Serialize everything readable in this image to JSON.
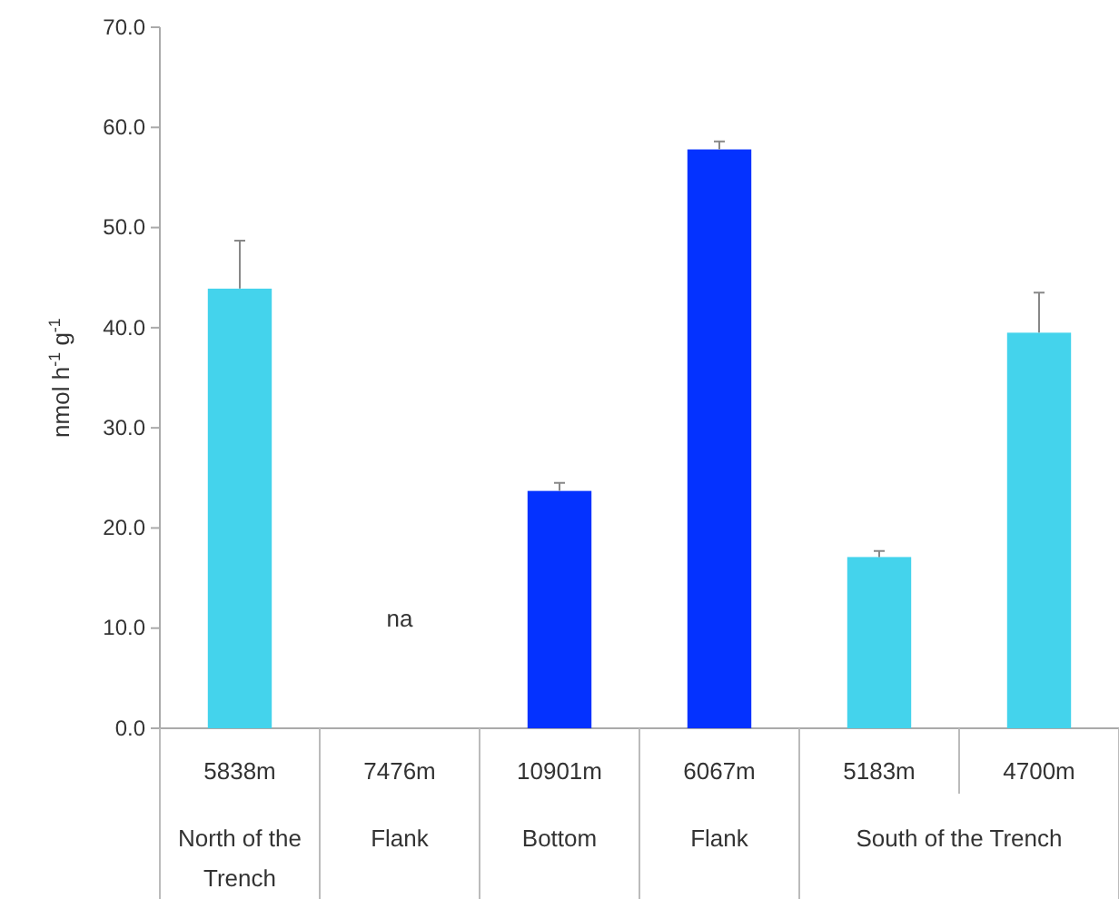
{
  "chart_data": {
    "type": "bar",
    "ylabel": "nmol h$^{-1}$ g$^{-1}$",
    "categories": [
      "5838m",
      "7476m",
      "10901m",
      "6067m",
      "5183m",
      "4700m"
    ],
    "values": [
      43.9,
      null,
      23.7,
      57.8,
      17.1,
      39.5
    ],
    "errors": [
      4.8,
      null,
      0.8,
      0.8,
      0.6,
      4.0
    ],
    "colors": [
      "#44d3ec",
      null,
      "#0432ff",
      "#0432ff",
      "#44d3ec",
      "#44d3ec"
    ],
    "ylim": [
      0,
      70
    ],
    "yticks": [
      {
        "value": 0,
        "label": "0.0"
      },
      {
        "value": 10,
        "label": "10.0"
      },
      {
        "value": 20,
        "label": "20.0"
      },
      {
        "value": 30,
        "label": "30.0"
      },
      {
        "value": 40,
        "label": "40.0"
      },
      {
        "value": 50,
        "label": "50.0"
      },
      {
        "value": 60,
        "label": "60.0"
      },
      {
        "value": 70,
        "label": "70.0"
      }
    ],
    "annotations": [
      "na",
      "North of the Trench",
      "Flank",
      "Bottom",
      "Flank",
      "South of the Trench"
    ],
    "grid": false
  }
}
